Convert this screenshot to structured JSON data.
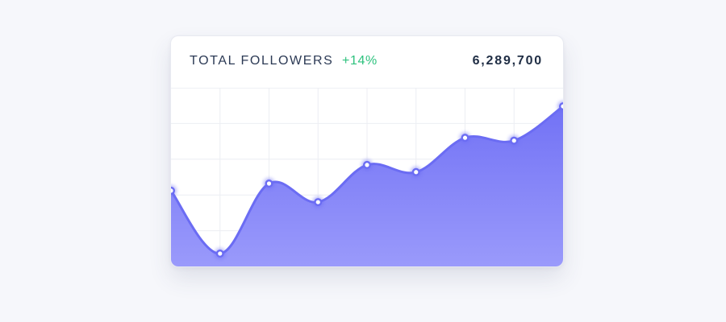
{
  "card": {
    "title": "TOTAL FOLLOWERS",
    "change": "+14%",
    "total": "6,289,700"
  },
  "colors": {
    "accent": "#6b6cf3",
    "positive": "#2ec27e",
    "area_top": "#7272f5",
    "area_bottom": "#9a9afb",
    "grid": "#eceef3"
  },
  "chart_data": {
    "type": "area",
    "title": "",
    "xlabel": "",
    "ylabel": "",
    "x": [
      1,
      2,
      3,
      4,
      5,
      6,
      7,
      8,
      9
    ],
    "values": [
      53,
      9,
      58,
      45,
      71,
      66,
      90,
      88,
      112
    ],
    "ylim": [
      0,
      125
    ],
    "grid": true,
    "markers": true
  }
}
